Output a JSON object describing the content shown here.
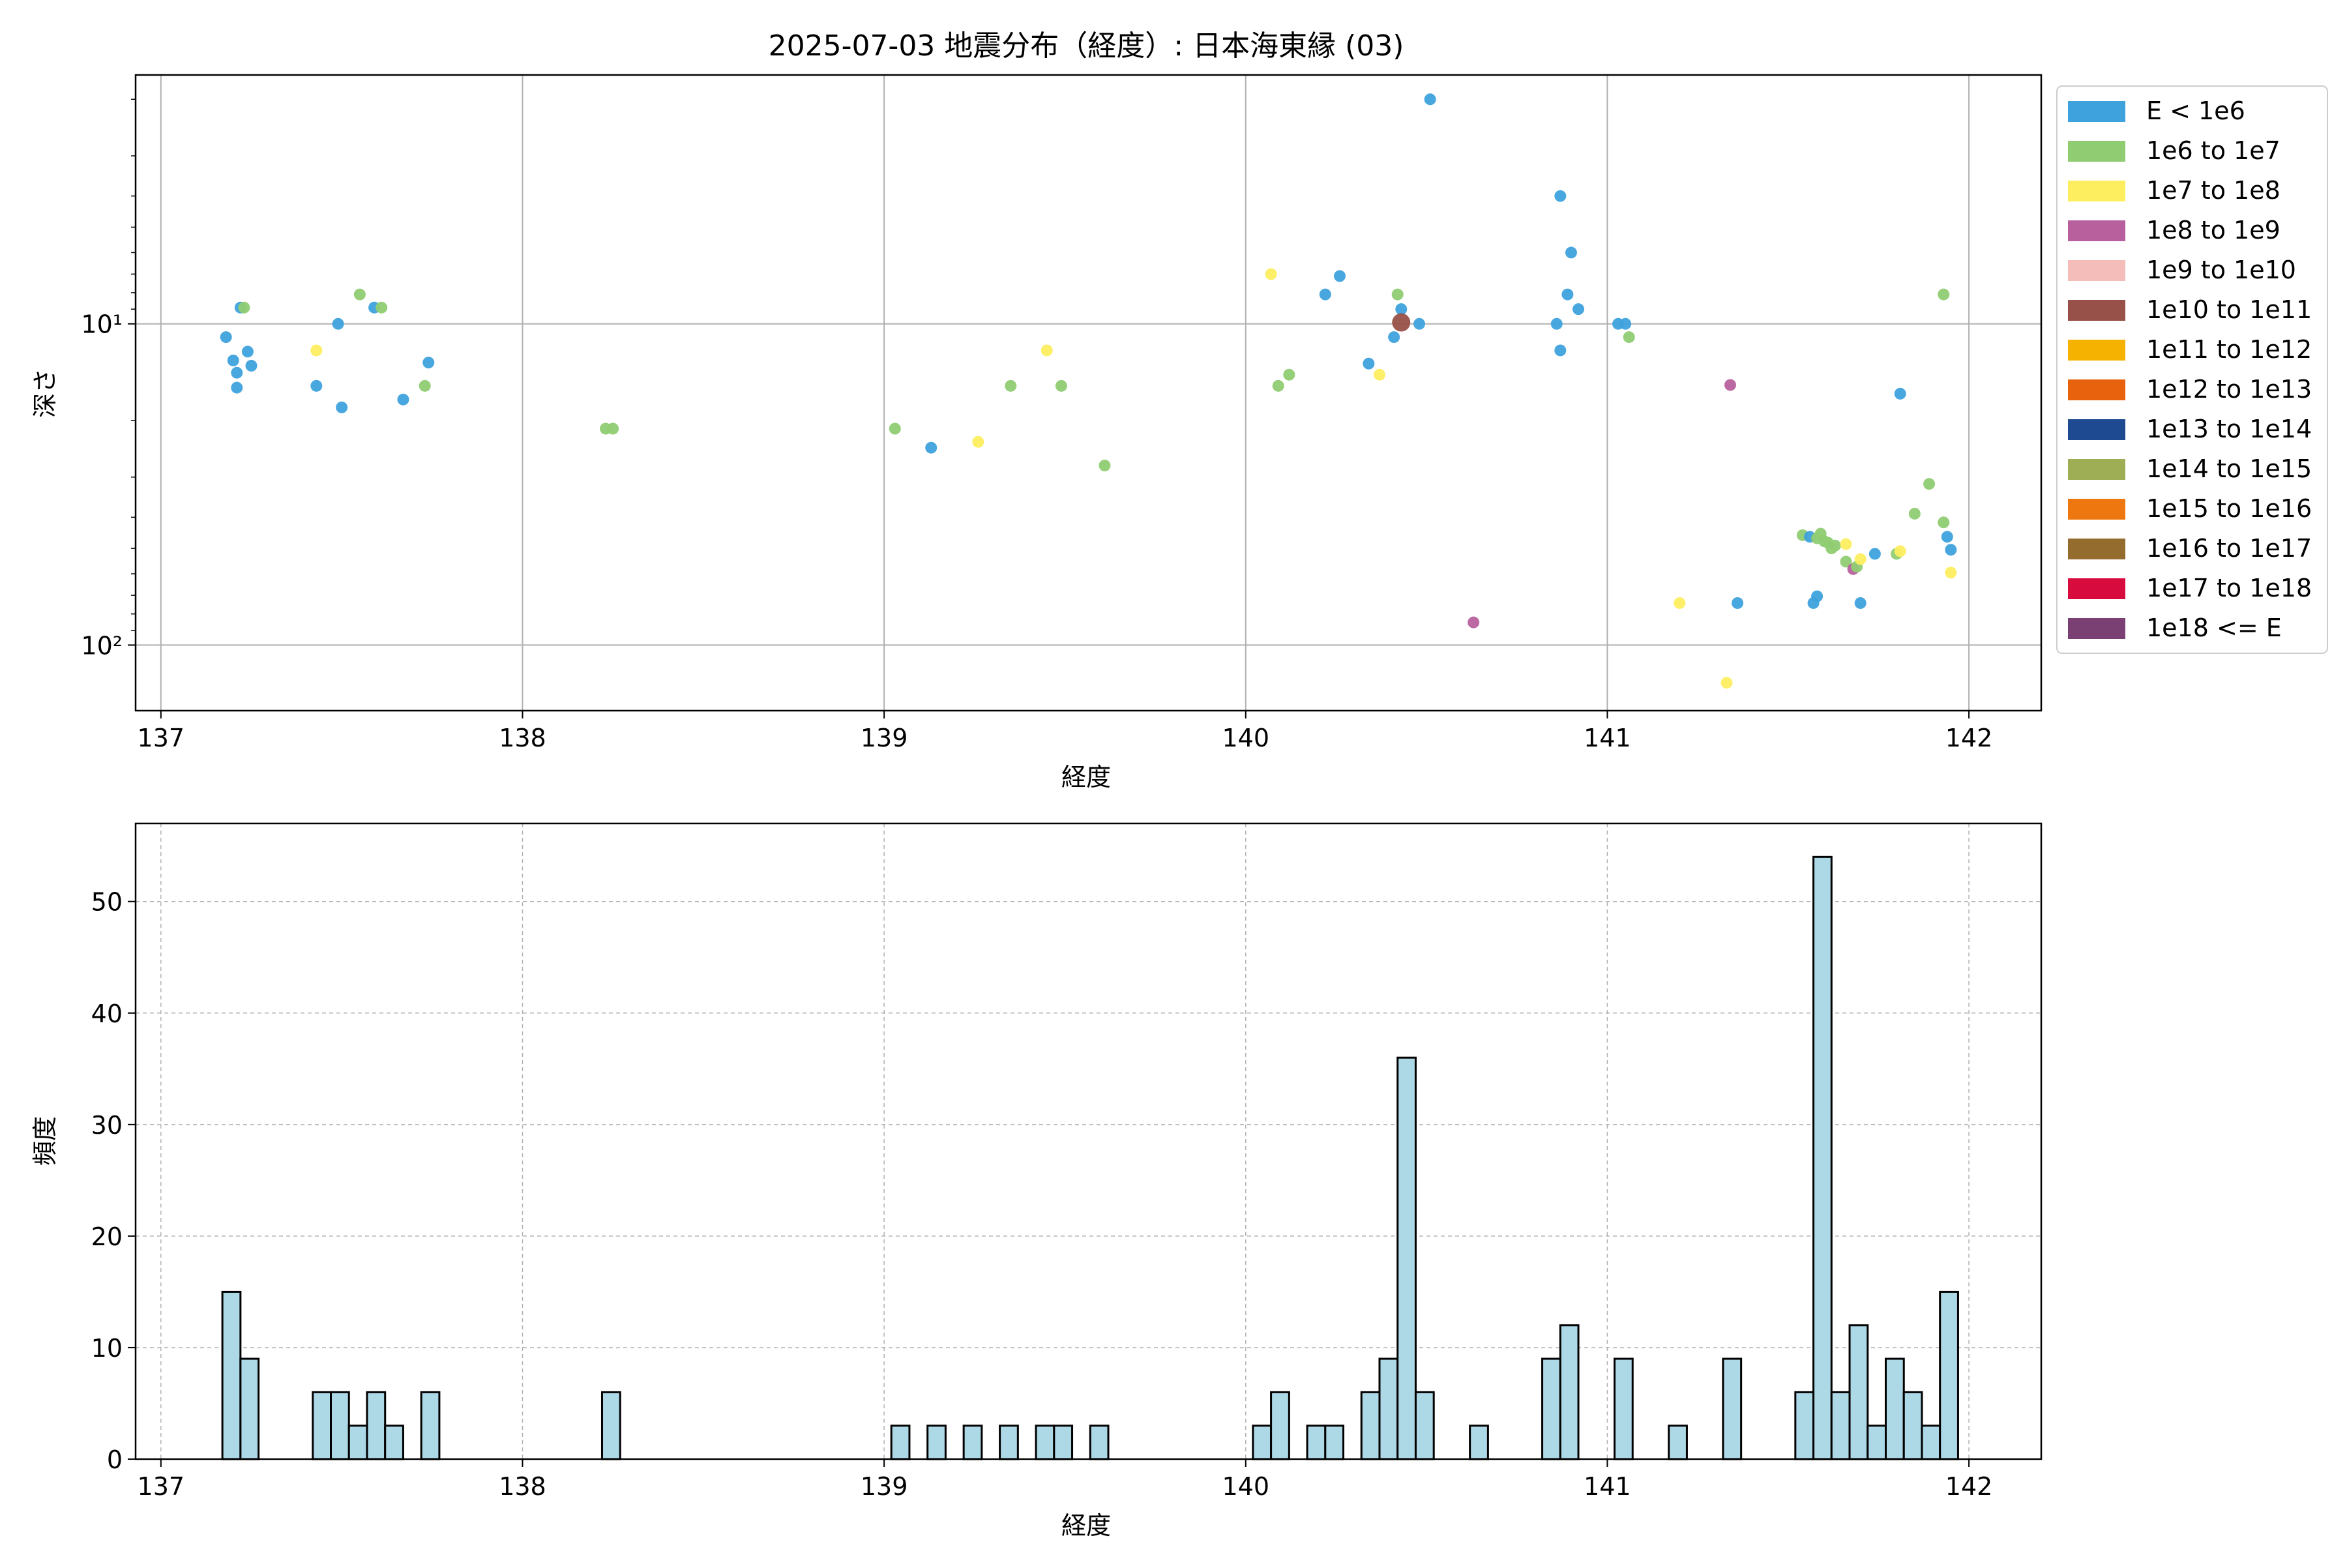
{
  "chart_data": [
    {
      "type": "scatter",
      "title": "2025-07-03 地震分布（経度）: 日本海東縁 (03)",
      "xlabel": "経度",
      "ylabel": "深さ",
      "xlim": [
        136.93,
        142.2
      ],
      "ylim": [
        160,
        1.68
      ],
      "yscale": "log",
      "y_inverted": true,
      "grid": true,
      "x_ticks": [
        "137",
        "138",
        "139",
        "140",
        "141",
        "142"
      ],
      "x_tick_values": [
        137,
        138,
        139,
        140,
        141,
        142
      ],
      "y_ticks": [
        "10¹",
        "10²"
      ],
      "y_tick_values": [
        10,
        100
      ],
      "legend_position": "outside-right",
      "legend": [
        {
          "label": "E < 1e6",
          "color": "#3ea2dc"
        },
        {
          "label": "1e6 to 1e7",
          "color": "#90cc72"
        },
        {
          "label": "1e7 to 1e8",
          "color": "#fdee60"
        },
        {
          "label": "1e8 to 1e9",
          "color": "#b8609e"
        },
        {
          "label": "1e9 to 1e10",
          "color": "#f5bdb9"
        },
        {
          "label": "1e10 to 1e11",
          "color": "#985148"
        },
        {
          "label": "1e11 to 1e12",
          "color": "#f6b200"
        },
        {
          "label": "1e12 to 1e13",
          "color": "#e8620e"
        },
        {
          "label": "1e13 to 1e14",
          "color": "#1d4a91"
        },
        {
          "label": "1e14 to 1e15",
          "color": "#9eae55"
        },
        {
          "label": "1e15 to 1e16",
          "color": "#ee780f"
        },
        {
          "label": "1e16 to 1e17",
          "color": "#946c2e"
        },
        {
          "label": "1e17 to 1e18",
          "color": "#d70b3e"
        },
        {
          "label": "1e18 <= E",
          "color": "#7a4074"
        }
      ],
      "points": [
        {
          "x": 137.18,
          "y": 11.0,
          "c": 0
        },
        {
          "x": 137.2,
          "y": 13.0,
          "c": 0
        },
        {
          "x": 137.21,
          "y": 14.2,
          "c": 0
        },
        {
          "x": 137.21,
          "y": 15.8,
          "c": 0
        },
        {
          "x": 137.22,
          "y": 8.9,
          "c": 0
        },
        {
          "x": 137.24,
          "y": 12.2,
          "c": 0
        },
        {
          "x": 137.25,
          "y": 13.5,
          "c": 0
        },
        {
          "x": 137.23,
          "y": 8.9,
          "c": 1
        },
        {
          "x": 137.43,
          "y": 12.1,
          "c": 2
        },
        {
          "x": 137.43,
          "y": 15.6,
          "c": 0
        },
        {
          "x": 137.49,
          "y": 10.0,
          "c": 0
        },
        {
          "x": 137.5,
          "y": 18.2,
          "c": 0
        },
        {
          "x": 137.55,
          "y": 8.1,
          "c": 1
        },
        {
          "x": 137.59,
          "y": 8.9,
          "c": 0
        },
        {
          "x": 137.61,
          "y": 8.9,
          "c": 1
        },
        {
          "x": 137.67,
          "y": 17.2,
          "c": 0
        },
        {
          "x": 137.73,
          "y": 15.6,
          "c": 1
        },
        {
          "x": 137.74,
          "y": 13.2,
          "c": 0
        },
        {
          "x": 138.23,
          "y": 21.2,
          "c": 1
        },
        {
          "x": 138.25,
          "y": 21.2,
          "c": 1
        },
        {
          "x": 139.03,
          "y": 21.2,
          "c": 1
        },
        {
          "x": 139.13,
          "y": 24.3,
          "c": 0
        },
        {
          "x": 139.26,
          "y": 23.3,
          "c": 2
        },
        {
          "x": 139.35,
          "y": 15.6,
          "c": 1
        },
        {
          "x": 139.45,
          "y": 12.1,
          "c": 2
        },
        {
          "x": 139.49,
          "y": 15.6,
          "c": 1
        },
        {
          "x": 139.61,
          "y": 27.6,
          "c": 1
        },
        {
          "x": 140.07,
          "y": 7.0,
          "c": 2
        },
        {
          "x": 140.09,
          "y": 15.6,
          "c": 1
        },
        {
          "x": 140.12,
          "y": 14.4,
          "c": 1
        },
        {
          "x": 140.22,
          "y": 8.1,
          "c": 0
        },
        {
          "x": 140.26,
          "y": 7.1,
          "c": 0
        },
        {
          "x": 140.34,
          "y": 13.3,
          "c": 0
        },
        {
          "x": 140.37,
          "y": 14.4,
          "c": 2
        },
        {
          "x": 140.41,
          "y": 11.0,
          "c": 0
        },
        {
          "x": 140.42,
          "y": 8.1,
          "c": 1
        },
        {
          "x": 140.43,
          "y": 9.0,
          "c": 0
        },
        {
          "x": 140.43,
          "y": 9.9,
          "c": 5
        },
        {
          "x": 140.48,
          "y": 10.0,
          "c": 0
        },
        {
          "x": 140.51,
          "y": 2.0,
          "c": 0
        },
        {
          "x": 140.63,
          "y": 85.0,
          "c": 3
        },
        {
          "x": 140.86,
          "y": 10.0,
          "c": 0
        },
        {
          "x": 140.87,
          "y": 12.1,
          "c": 0
        },
        {
          "x": 140.87,
          "y": 4.0,
          "c": 0
        },
        {
          "x": 140.89,
          "y": 8.1,
          "c": 0
        },
        {
          "x": 140.9,
          "y": 6.0,
          "c": 0
        },
        {
          "x": 140.92,
          "y": 9.0,
          "c": 0
        },
        {
          "x": 141.03,
          "y": 10.0,
          "c": 0
        },
        {
          "x": 141.05,
          "y": 10.0,
          "c": 0
        },
        {
          "x": 141.06,
          "y": 11.0,
          "c": 1
        },
        {
          "x": 141.2,
          "y": 74.0,
          "c": 2
        },
        {
          "x": 141.33,
          "y": 131.0,
          "c": 2
        },
        {
          "x": 141.34,
          "y": 15.5,
          "c": 3
        },
        {
          "x": 141.36,
          "y": 74.0,
          "c": 0
        },
        {
          "x": 141.54,
          "y": 45.5,
          "c": 1
        },
        {
          "x": 141.56,
          "y": 46.0,
          "c": 0
        },
        {
          "x": 141.57,
          "y": 74.0,
          "c": 0
        },
        {
          "x": 141.58,
          "y": 70.5,
          "c": 0
        },
        {
          "x": 141.58,
          "y": 46.5,
          "c": 1
        },
        {
          "x": 141.59,
          "y": 45.0,
          "c": 1
        },
        {
          "x": 141.6,
          "y": 47.5,
          "c": 1
        },
        {
          "x": 141.61,
          "y": 48.0,
          "c": 1
        },
        {
          "x": 141.62,
          "y": 50.0,
          "c": 1
        },
        {
          "x": 141.63,
          "y": 49.0,
          "c": 1
        },
        {
          "x": 141.66,
          "y": 48.5,
          "c": 2
        },
        {
          "x": 141.66,
          "y": 55.0,
          "c": 1
        },
        {
          "x": 141.68,
          "y": 58.0,
          "c": 3
        },
        {
          "x": 141.69,
          "y": 57.0,
          "c": 1
        },
        {
          "x": 141.7,
          "y": 74.0,
          "c": 0
        },
        {
          "x": 141.7,
          "y": 54.0,
          "c": 2
        },
        {
          "x": 141.74,
          "y": 52.0,
          "c": 0
        },
        {
          "x": 141.8,
          "y": 52.0,
          "c": 1
        },
        {
          "x": 141.81,
          "y": 51.0,
          "c": 2
        },
        {
          "x": 141.81,
          "y": 16.5,
          "c": 0
        },
        {
          "x": 141.85,
          "y": 39.0,
          "c": 1
        },
        {
          "x": 141.89,
          "y": 31.5,
          "c": 1
        },
        {
          "x": 141.93,
          "y": 8.1,
          "c": 1
        },
        {
          "x": 141.93,
          "y": 41.5,
          "c": 1
        },
        {
          "x": 141.94,
          "y": 46.0,
          "c": 0
        },
        {
          "x": 141.95,
          "y": 50.5,
          "c": 0
        },
        {
          "x": 141.95,
          "y": 59.5,
          "c": 2
        }
      ]
    },
    {
      "type": "bar",
      "xlabel": "経度",
      "ylabel": "頻度",
      "xlim": [
        136.93,
        142.2
      ],
      "ylim": [
        0,
        57
      ],
      "grid": true,
      "bar_color": "#add8e6",
      "bar_edge_color": "#000000",
      "bin_width": 0.05,
      "x_ticks": [
        "137",
        "138",
        "139",
        "140",
        "141",
        "142"
      ],
      "x_tick_values": [
        137,
        138,
        139,
        140,
        141,
        142
      ],
      "y_ticks": [
        "0",
        "10",
        "20",
        "30",
        "40",
        "50"
      ],
      "y_tick_values": [
        0,
        10,
        20,
        30,
        40,
        50
      ],
      "bins": [
        {
          "x0": 137.17,
          "v": 15
        },
        {
          "x0": 137.22,
          "v": 9
        },
        {
          "x0": 137.42,
          "v": 6
        },
        {
          "x0": 137.47,
          "v": 6
        },
        {
          "x0": 137.52,
          "v": 3
        },
        {
          "x0": 137.57,
          "v": 6
        },
        {
          "x0": 137.62,
          "v": 3
        },
        {
          "x0": 137.72,
          "v": 6
        },
        {
          "x0": 138.22,
          "v": 6
        },
        {
          "x0": 139.02,
          "v": 3
        },
        {
          "x0": 139.12,
          "v": 3
        },
        {
          "x0": 139.22,
          "v": 3
        },
        {
          "x0": 139.32,
          "v": 3
        },
        {
          "x0": 139.42,
          "v": 3
        },
        {
          "x0": 139.47,
          "v": 3
        },
        {
          "x0": 139.57,
          "v": 3
        },
        {
          "x0": 140.02,
          "v": 3
        },
        {
          "x0": 140.07,
          "v": 6
        },
        {
          "x0": 140.17,
          "v": 3
        },
        {
          "x0": 140.22,
          "v": 3
        },
        {
          "x0": 140.32,
          "v": 6
        },
        {
          "x0": 140.37,
          "v": 9
        },
        {
          "x0": 140.42,
          "v": 36
        },
        {
          "x0": 140.47,
          "v": 6
        },
        {
          "x0": 140.62,
          "v": 3
        },
        {
          "x0": 140.82,
          "v": 9
        },
        {
          "x0": 140.87,
          "v": 12
        },
        {
          "x0": 141.02,
          "v": 9
        },
        {
          "x0": 141.17,
          "v": 3
        },
        {
          "x0": 141.32,
          "v": 9
        },
        {
          "x0": 141.52,
          "v": 6
        },
        {
          "x0": 141.57,
          "v": 54
        },
        {
          "x0": 141.62,
          "v": 6
        },
        {
          "x0": 141.67,
          "v": 12
        },
        {
          "x0": 141.72,
          "v": 3
        },
        {
          "x0": 141.77,
          "v": 9
        },
        {
          "x0": 141.82,
          "v": 6
        },
        {
          "x0": 141.87,
          "v": 3
        },
        {
          "x0": 141.92,
          "v": 15
        }
      ]
    }
  ]
}
